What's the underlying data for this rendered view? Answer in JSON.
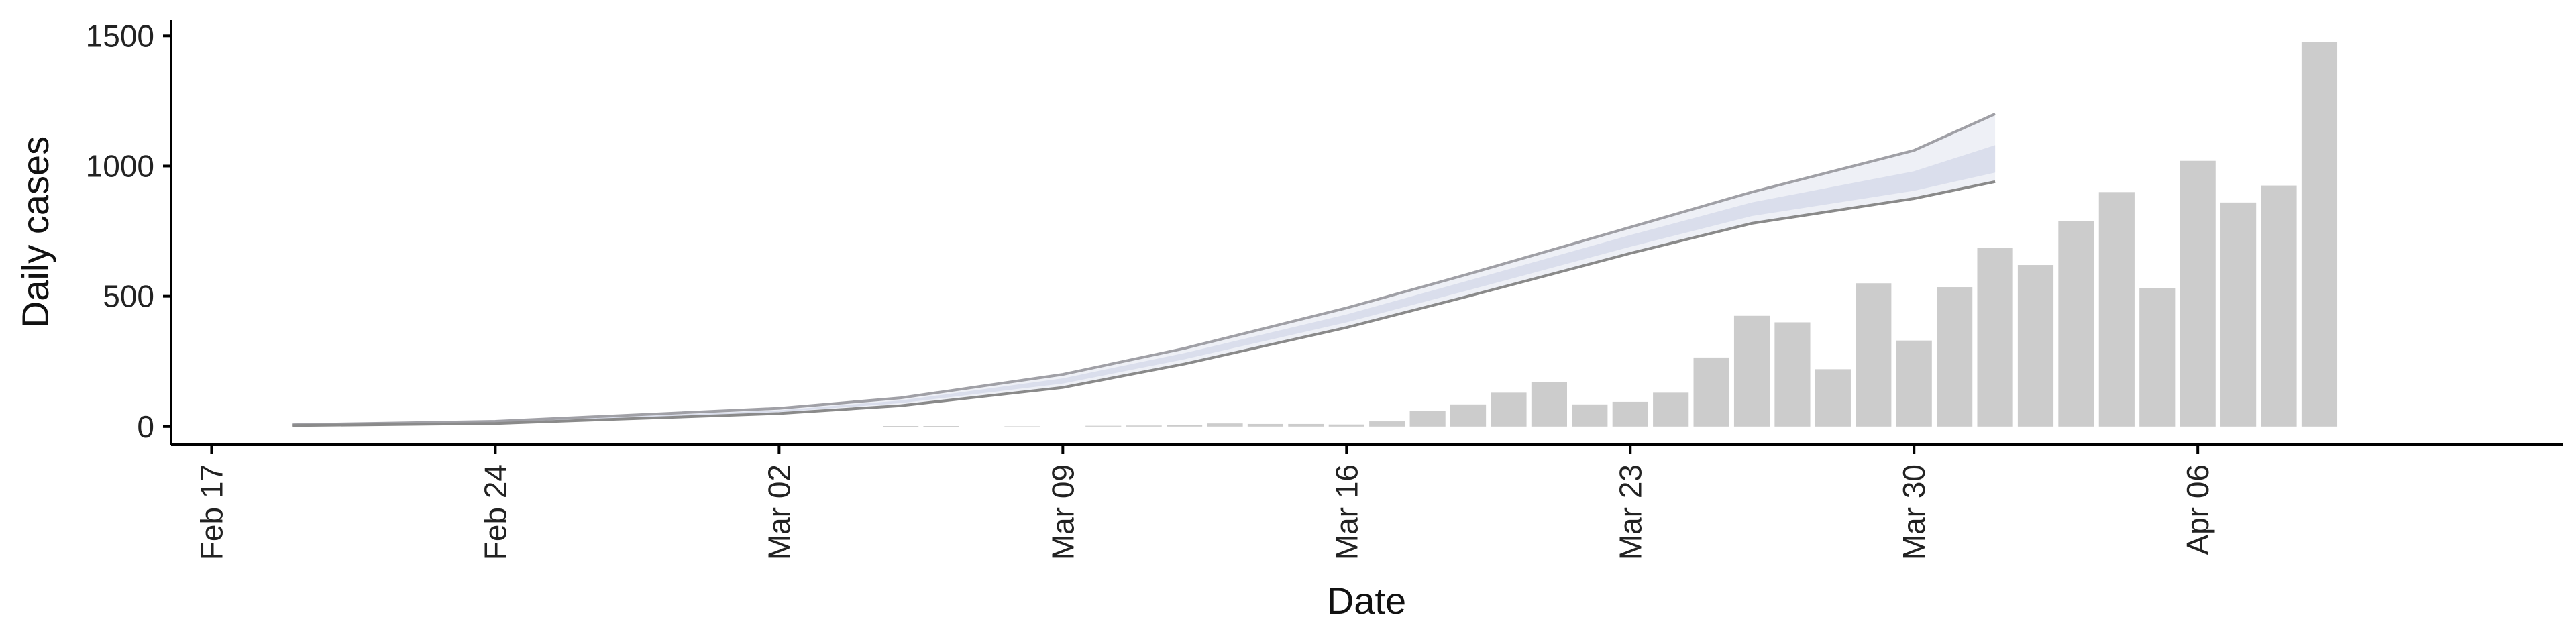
{
  "chart_data": {
    "type": "bar",
    "xlabel": "Date",
    "ylabel": "Daily cases",
    "yticks": [
      0,
      500,
      1000,
      1500
    ],
    "ylim": [
      -70,
      1560
    ],
    "x_axis": {
      "type": "date",
      "start": "2020-02-16",
      "end": "2020-04-15"
    },
    "xticks": [
      {
        "date": "2020-02-17",
        "label": "Feb 17"
      },
      {
        "date": "2020-02-24",
        "label": "Feb 24"
      },
      {
        "date": "2020-03-02",
        "label": "Mar 02"
      },
      {
        "date": "2020-03-09",
        "label": "Mar 09"
      },
      {
        "date": "2020-03-16",
        "label": "Mar 16"
      },
      {
        "date": "2020-03-23",
        "label": "Mar 23"
      },
      {
        "date": "2020-03-30",
        "label": "Mar 30"
      },
      {
        "date": "2020-04-06",
        "label": "Apr 06"
      }
    ],
    "grid": false,
    "colors": {
      "bars": "#cccccc",
      "band_outer": "#eef0f6",
      "band_inner": "#dadeec",
      "band_edge_lines": "#8a8a8a",
      "axis": "#000000"
    },
    "bars": [
      {
        "date": "2020-03-05",
        "value": 2
      },
      {
        "date": "2020-03-06",
        "value": 2
      },
      {
        "date": "2020-03-08",
        "value": 1
      },
      {
        "date": "2020-03-10",
        "value": 3
      },
      {
        "date": "2020-03-11",
        "value": 4
      },
      {
        "date": "2020-03-12",
        "value": 6
      },
      {
        "date": "2020-03-13",
        "value": 12
      },
      {
        "date": "2020-03-14",
        "value": 10
      },
      {
        "date": "2020-03-15",
        "value": 10
      },
      {
        "date": "2020-03-16",
        "value": 8
      },
      {
        "date": "2020-03-17",
        "value": 20
      },
      {
        "date": "2020-03-18",
        "value": 60
      },
      {
        "date": "2020-03-19",
        "value": 85
      },
      {
        "date": "2020-03-20",
        "value": 130
      },
      {
        "date": "2020-03-21",
        "value": 170
      },
      {
        "date": "2020-03-22",
        "value": 85
      },
      {
        "date": "2020-03-23",
        "value": 95
      },
      {
        "date": "2020-03-24",
        "value": 130
      },
      {
        "date": "2020-03-25",
        "value": 265
      },
      {
        "date": "2020-03-26",
        "value": 425
      },
      {
        "date": "2020-03-27",
        "value": 400
      },
      {
        "date": "2020-03-28",
        "value": 220
      },
      {
        "date": "2020-03-29",
        "value": 550
      },
      {
        "date": "2020-03-30",
        "value": 330
      },
      {
        "date": "2020-03-31",
        "value": 535
      },
      {
        "date": "2020-04-01",
        "value": 685
      },
      {
        "date": "2020-04-02",
        "value": 620
      },
      {
        "date": "2020-04-03",
        "value": 790
      },
      {
        "date": "2020-04-04",
        "value": 900
      },
      {
        "date": "2020-04-05",
        "value": 530
      },
      {
        "date": "2020-04-06",
        "value": 1020
      },
      {
        "date": "2020-04-07",
        "value": 860
      },
      {
        "date": "2020-04-08",
        "value": 925
      },
      {
        "date": "2020-04-09",
        "value": 1475
      }
    ],
    "band": [
      {
        "date": "2020-02-19",
        "lo90": 4,
        "lo50": 5,
        "hi50": 6,
        "hi90": 7
      },
      {
        "date": "2020-02-24",
        "lo90": 12,
        "lo50": 14,
        "hi50": 17,
        "hi90": 20
      },
      {
        "date": "2020-03-02",
        "lo90": 50,
        "lo50": 56,
        "hi50": 62,
        "hi90": 70
      },
      {
        "date": "2020-03-05",
        "lo90": 80,
        "lo50": 90,
        "hi50": 100,
        "hi90": 110
      },
      {
        "date": "2020-03-09",
        "lo90": 150,
        "lo50": 165,
        "hi50": 185,
        "hi90": 200
      },
      {
        "date": "2020-03-12",
        "lo90": 240,
        "lo50": 258,
        "hi50": 282,
        "hi90": 300
      },
      {
        "date": "2020-03-16",
        "lo90": 380,
        "lo50": 400,
        "hi50": 430,
        "hi90": 455
      },
      {
        "date": "2020-03-19",
        "lo90": 500,
        "lo50": 523,
        "hi50": 560,
        "hi90": 585
      },
      {
        "date": "2020-03-23",
        "lo90": 665,
        "lo50": 690,
        "hi50": 735,
        "hi90": 765
      },
      {
        "date": "2020-03-26",
        "lo90": 780,
        "lo50": 808,
        "hi50": 860,
        "hi90": 900
      },
      {
        "date": "2020-03-30",
        "lo90": 875,
        "lo50": 905,
        "hi50": 980,
        "hi90": 1060
      },
      {
        "date": "2020-04-01",
        "lo90": 940,
        "lo50": 975,
        "hi50": 1080,
        "hi90": 1200
      }
    ]
  }
}
